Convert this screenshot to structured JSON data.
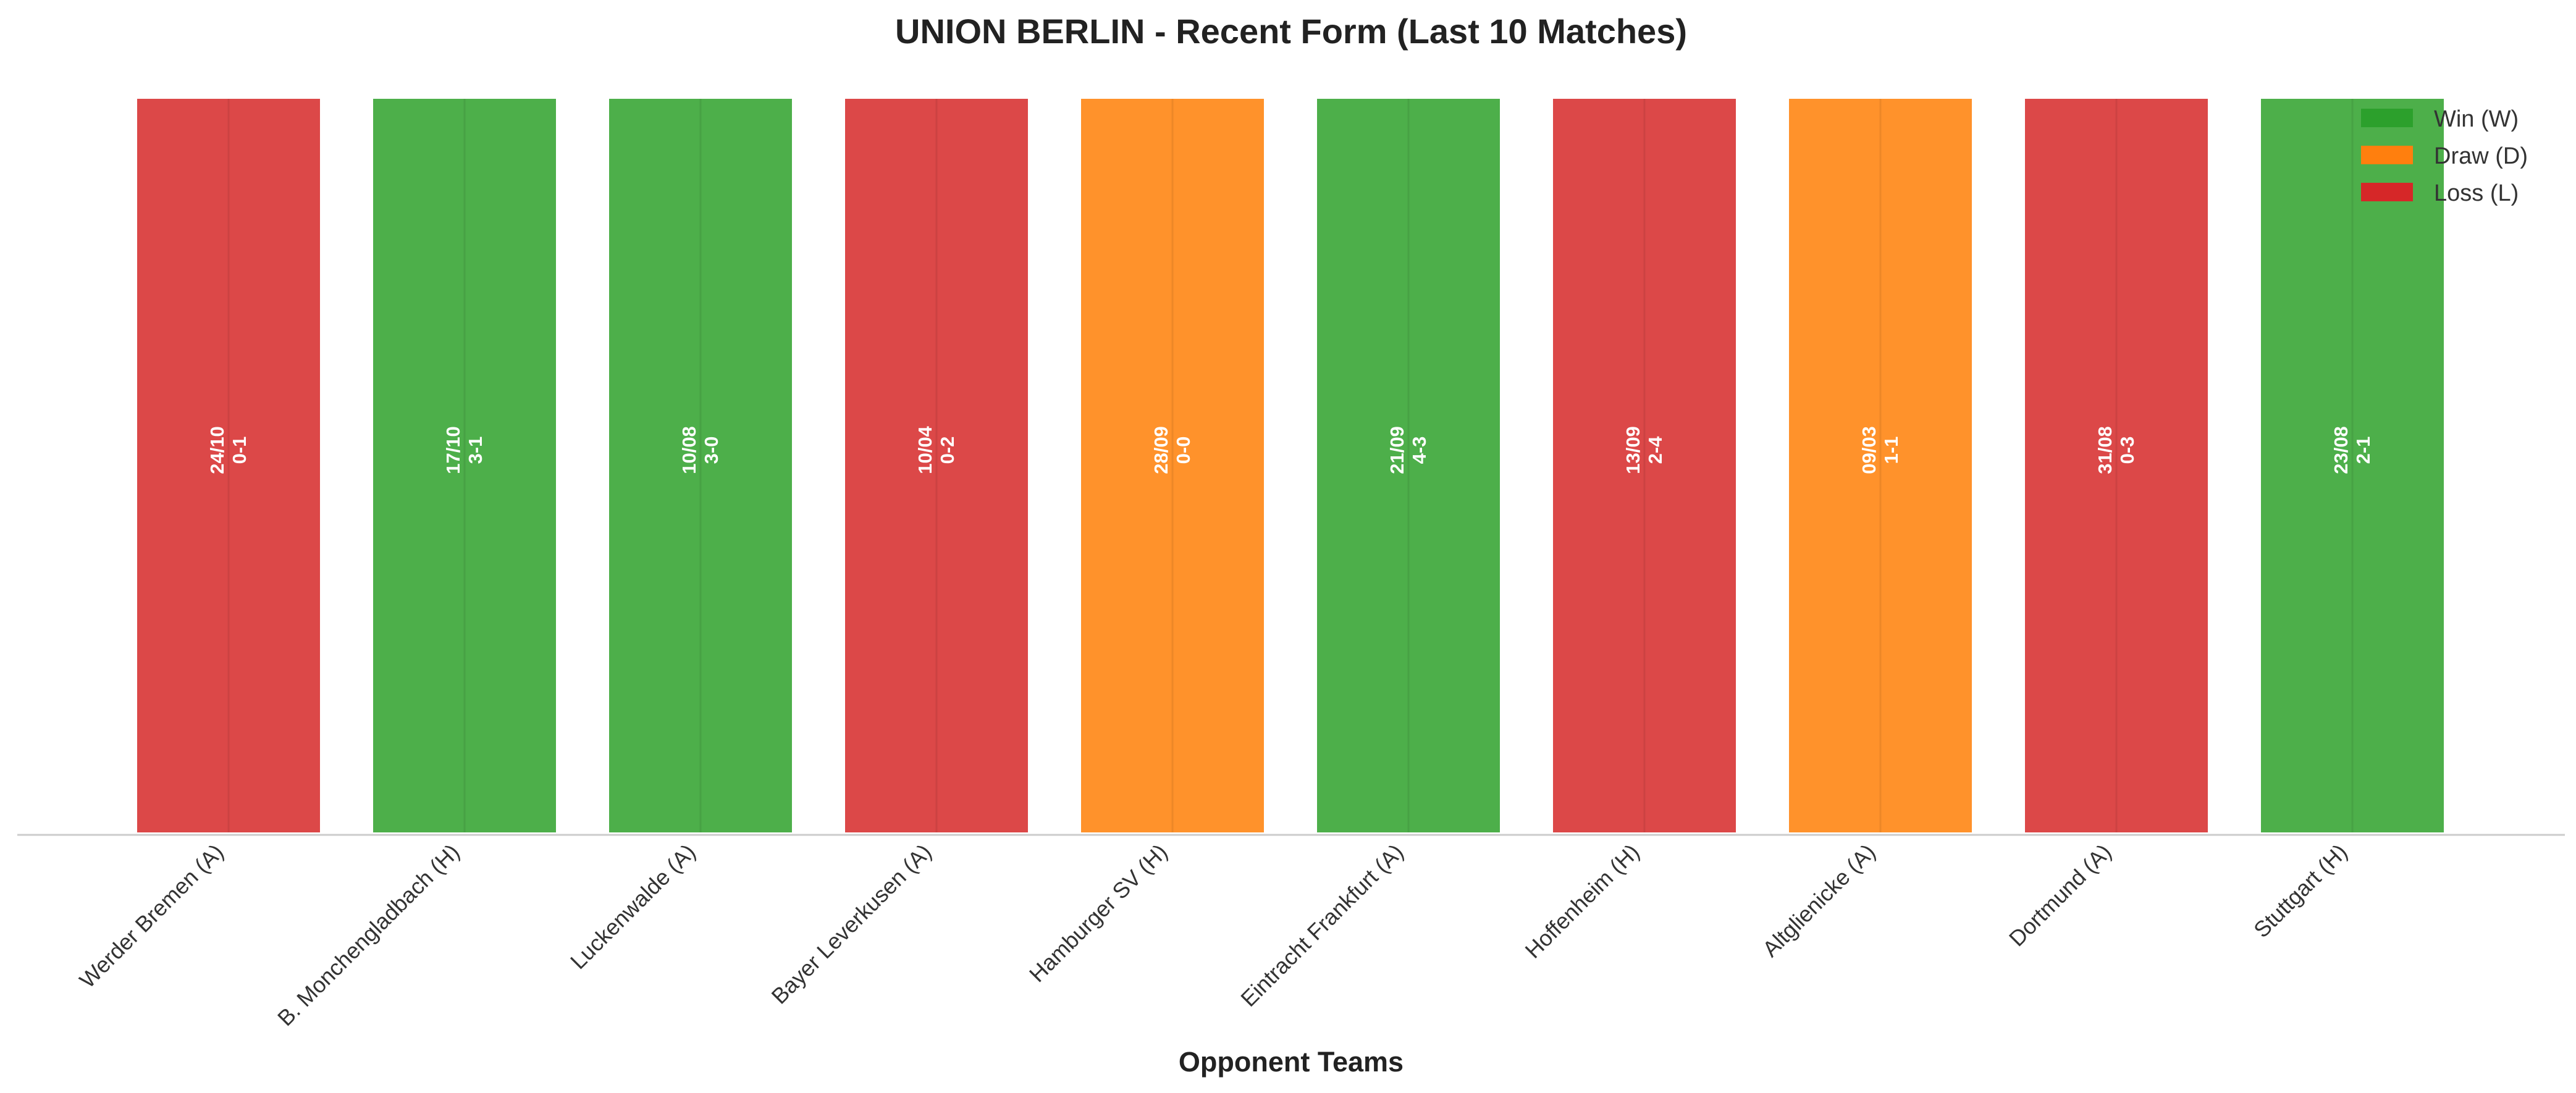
{
  "chart_data": {
    "type": "bar",
    "title": "UNION BERLIN - Recent Form (Last 10 Matches)",
    "xlabel": "Opponent Teams",
    "ylabel": "",
    "ylim": [
      0,
      1
    ],
    "grid": false,
    "legend_position": "top-right",
    "categories": [
      "Werder Bremen (A)",
      "B. Monchengladbach (H)",
      "Luckenwalde (A)",
      "Bayer Leverkusen (A)",
      "Hamburger SV (H)",
      "Eintracht Frankfurt (A)",
      "Hoffenheim (H)",
      "Altglienicke (A)",
      "Dortmund (A)",
      "Stuttgart (H)"
    ],
    "values": [
      1,
      1,
      1,
      1,
      1,
      1,
      1,
      1,
      1,
      1
    ],
    "results": [
      "L",
      "W",
      "W",
      "L",
      "D",
      "W",
      "L",
      "D",
      "L",
      "W"
    ],
    "dates": [
      "24/10",
      "17/10",
      "10/08",
      "10/04",
      "28/09",
      "21/09",
      "13/09",
      "09/03",
      "31/08",
      "23/08"
    ],
    "scores": [
      "0-1",
      "3-1",
      "3-0",
      "0-2",
      "0-0",
      "4-3",
      "2-4",
      "1-1",
      "0-3",
      "2-1"
    ],
    "legend": [
      {
        "key": "W",
        "label": "Win (W)",
        "color": "#2ca02c"
      },
      {
        "key": "D",
        "label": "Draw (D)",
        "color": "#ff7f0e"
      },
      {
        "key": "L",
        "label": "Loss (L)",
        "color": "#d62728"
      }
    ],
    "colors": {
      "W": "#4daf4a",
      "D": "#ff922b",
      "L": "#dc4848"
    }
  }
}
